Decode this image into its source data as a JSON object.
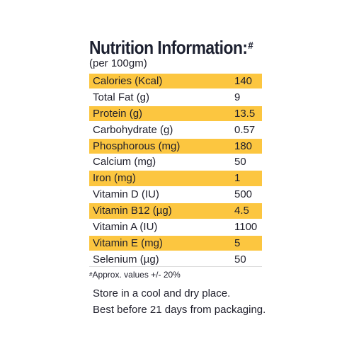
{
  "title": "Nutrition Information:",
  "title_mark": "#",
  "subtitle": "(per 100gm)",
  "rows": [
    {
      "name": "Calories (Kcal)",
      "value": "140",
      "highlight": true
    },
    {
      "name": "Total Fat (g)",
      "value": "9",
      "highlight": false
    },
    {
      "name": "Protein (g)",
      "value": "13.5",
      "highlight": true
    },
    {
      "name": "Carbohydrate (g)",
      "value": "0.57",
      "highlight": false
    },
    {
      "name": "Phosphorous (mg)",
      "value": "180",
      "highlight": true
    },
    {
      "name": "Calcium (mg)",
      "value": "50",
      "highlight": false
    },
    {
      "name": "Iron (mg)",
      "value": "1",
      "highlight": true
    },
    {
      "name": "Vitamin D (IU)",
      "value": "500",
      "highlight": false
    },
    {
      "name": "Vitamin B12 (µg)",
      "value": "4.5",
      "highlight": true
    },
    {
      "name": "Vitamin A (IU)",
      "value": "1100",
      "highlight": false
    },
    {
      "name": "Vitamin E (mg)",
      "value": "5",
      "highlight": true
    },
    {
      "name": "Selenium (µg)",
      "value": "50",
      "highlight": false
    }
  ],
  "footnote_mark": "#",
  "footnote": "Approx. values +/- 20%",
  "storage_note": "Store in a cool and dry place.",
  "best_before": "Best before 21 days from packaging.",
  "colors": {
    "highlight": "#fcc640",
    "text": "#1f1f2b"
  }
}
